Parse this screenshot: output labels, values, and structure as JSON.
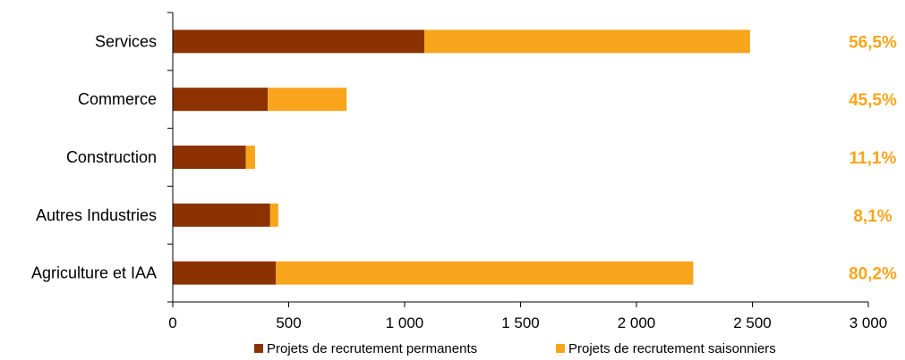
{
  "chart_data": {
    "type": "bar",
    "orientation": "horizontal",
    "stacked": true,
    "title": "",
    "xlabel": "",
    "ylabel": "",
    "categories": [
      "Services",
      "Commerce",
      "Construction",
      "Autres Industries",
      "Agriculture et IAA"
    ],
    "series": [
      {
        "name": "Projets de recrutement permanents",
        "color": "#8B3200",
        "values": [
          1085,
          410,
          315,
          420,
          445
        ]
      },
      {
        "name": "Projets de recrutement saisonniers",
        "color": "#F8A51C",
        "values": [
          1405,
          340,
          40,
          35,
          1800
        ]
      }
    ],
    "xlim": [
      0,
      3000
    ],
    "xticks": [
      0,
      500,
      1000,
      1500,
      2000,
      2500,
      3000
    ],
    "xtick_labels": [
      "0",
      "500",
      "1 000",
      "1 500",
      "2 000",
      "2 500",
      "3 000"
    ],
    "percent_labels": [
      "56,5%",
      "45,5%",
      "11,1%",
      "8,1%",
      "80,2%"
    ],
    "percent_color": "#F8A51C",
    "grid": false,
    "legend_position": "bottom"
  }
}
